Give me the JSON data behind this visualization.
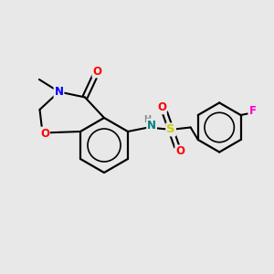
{
  "background_color": "#e8e8e8",
  "atom_colors": {
    "N": "#0000ff",
    "O": "#ff0000",
    "S": "#cccc00",
    "F": "#ff00cc",
    "NH_H": "#888888",
    "NH_N": "#008080",
    "C": "#000000"
  },
  "figsize": [
    3.0,
    3.0
  ],
  "dpi": 100
}
